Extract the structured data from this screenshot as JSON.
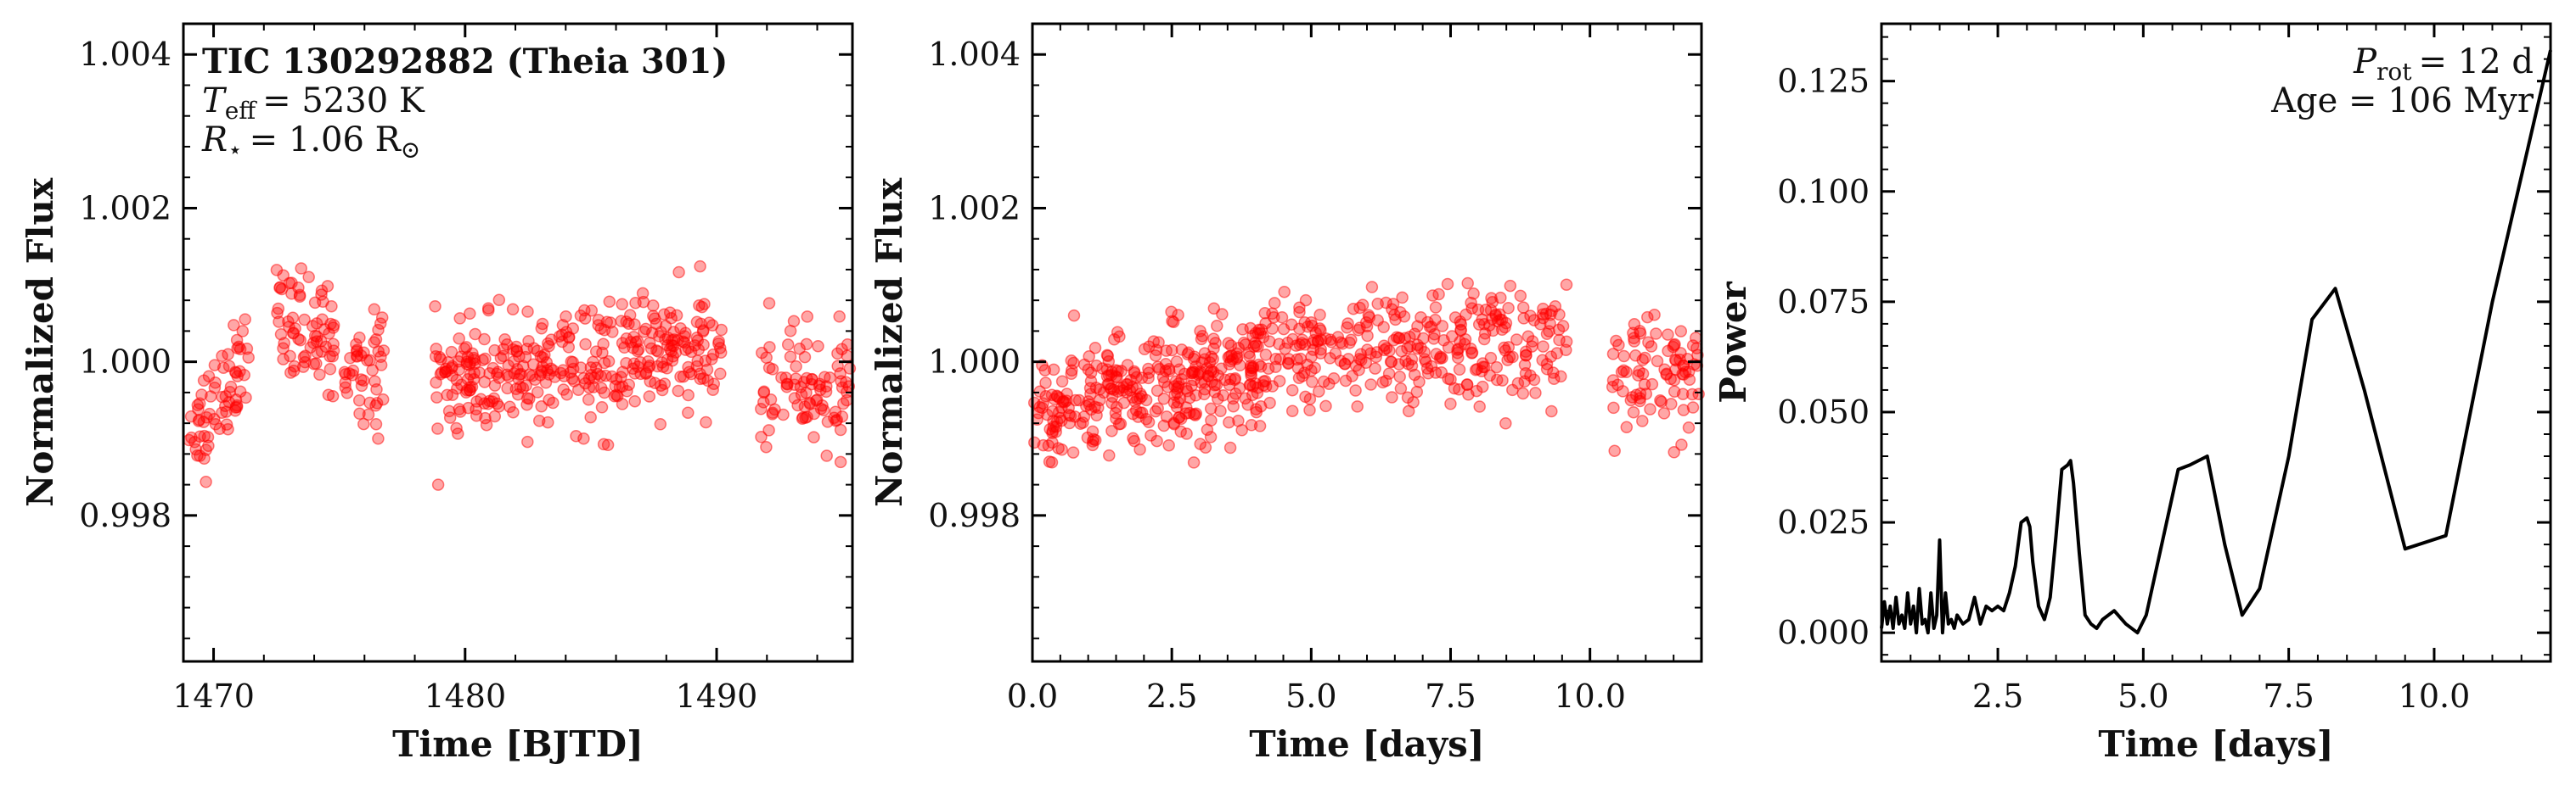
{
  "chart_data": [
    {
      "type": "scatter",
      "xlabel": "Time [BJTD]",
      "ylabel": "Normalized Flux",
      "xlim": [
        1468.8,
        1495.4
      ],
      "ylim": [
        0.9961,
        1.0044
      ],
      "xticks": [
        {
          "value": 1470,
          "label": "1470"
        },
        {
          "value": 1480,
          "label": "1480"
        },
        {
          "value": 1490,
          "label": "1490"
        }
      ],
      "yticks": [
        {
          "value": 0.998,
          "label": "0.998"
        },
        {
          "value": 1.0,
          "label": "1.000"
        },
        {
          "value": 1.002,
          "label": "1.002"
        },
        {
          "value": 1.004,
          "label": "1.004"
        }
      ],
      "annotations": {
        "star_name": "TIC 130292882 (Theia 301)",
        "teff": "= 5230 K",
        "radius": "= 1.06 R",
        "teff_symbol": "T",
        "teff_sub": "eff",
        "radius_symbol": "R",
        "radius_sub": "⋆",
        "sun_sub": "⊙"
      },
      "point_color": "#ff0000",
      "segments": [
        {
          "x_start": 1468.8,
          "x_end": 1471.4,
          "mean_start": 0.99875,
          "mean_end": 1.0002,
          "scatter": 0.00045,
          "count": 70
        },
        {
          "x_start": 1472.5,
          "x_end": 1474.8,
          "mean_start": 1.0004,
          "mean_end": 1.0004,
          "scatter": 0.0005,
          "count": 70
        },
        {
          "x_start": 1475.2,
          "x_end": 1476.8,
          "mean_start": 0.99995,
          "mean_end": 0.99985,
          "scatter": 0.0005,
          "count": 45
        },
        {
          "x_start": 1478.8,
          "x_end": 1490.2,
          "mean_start": 0.9997,
          "mean_end": 1.0002,
          "scatter": 0.0005,
          "count": 360
        },
        {
          "x_start": 1491.7,
          "x_end": 1495.4,
          "mean_start": 0.9996,
          "mean_end": 0.9997,
          "scatter": 0.0005,
          "count": 90
        }
      ]
    },
    {
      "type": "scatter",
      "xlabel": "Time [days]",
      "ylabel": "Normalized Flux",
      "xlim": [
        0.0,
        12.0
      ],
      "ylim": [
        0.9961,
        1.0044
      ],
      "xticks": [
        {
          "value": 0.0,
          "label": "0.0"
        },
        {
          "value": 2.5,
          "label": "2.5"
        },
        {
          "value": 5.0,
          "label": "5.0"
        },
        {
          "value": 7.5,
          "label": "7.5"
        },
        {
          "value": 10.0,
          "label": "10.0"
        }
      ],
      "yticks": [
        {
          "value": 0.998,
          "label": "0.998"
        },
        {
          "value": 1.0,
          "label": "1.000"
        },
        {
          "value": 1.002,
          "label": "1.002"
        },
        {
          "value": 1.004,
          "label": "1.004"
        }
      ],
      "point_color": "#ff0000",
      "segments": [
        {
          "x_start": 0.0,
          "x_end": 4.1,
          "mean_start": 0.9993,
          "mean_end": 0.99995,
          "scatter": 0.0005,
          "count": 330
        },
        {
          "x_start": 3.9,
          "x_end": 9.6,
          "mean_start": 1.0001,
          "mean_end": 1.0002,
          "scatter": 0.0005,
          "count": 330
        },
        {
          "x_start": 10.4,
          "x_end": 12.0,
          "mean_start": 0.9997,
          "mean_end": 0.99985,
          "scatter": 0.0005,
          "count": 90
        }
      ]
    },
    {
      "type": "line",
      "xlabel": "Time [days]",
      "ylabel": "Power",
      "xlim": [
        0.5,
        12.0
      ],
      "ylim": [
        -0.0065,
        0.138
      ],
      "xticks": [
        {
          "value": 2.5,
          "label": "2.5"
        },
        {
          "value": 5.0,
          "label": "5.0"
        },
        {
          "value": 7.5,
          "label": "7.5"
        },
        {
          "value": 10.0,
          "label": "10.0"
        }
      ],
      "yticks": [
        {
          "value": 0.0,
          "label": "0.000"
        },
        {
          "value": 0.025,
          "label": "0.025"
        },
        {
          "value": 0.05,
          "label": "0.050"
        },
        {
          "value": 0.075,
          "label": "0.075"
        },
        {
          "value": 0.1,
          "label": "0.100"
        },
        {
          "value": 0.125,
          "label": "0.125"
        }
      ],
      "annotations": {
        "prot_symbol": "P",
        "prot_sub": "rot",
        "prot_value": "= 12 d",
        "age": "Age = 106 Myr"
      },
      "line_color": "#000000",
      "series": [
        {
          "x": [
            0.5,
            0.55,
            0.6,
            0.65,
            0.7,
            0.75,
            0.8,
            0.85,
            0.9,
            0.95,
            1.0,
            1.05,
            1.1,
            1.15,
            1.2,
            1.25,
            1.3,
            1.35,
            1.4,
            1.45,
            1.5,
            1.55,
            1.6,
            1.65,
            1.7,
            1.75,
            1.8,
            1.9,
            2.0,
            2.1,
            2.2,
            2.3,
            2.4,
            2.5,
            2.6,
            2.7,
            2.8,
            2.9,
            3.0,
            3.05,
            3.1,
            3.2,
            3.3,
            3.4,
            3.5,
            3.6,
            3.7,
            3.75,
            3.8,
            3.9,
            4.0,
            4.1,
            4.2,
            4.3,
            4.5,
            4.7,
            4.9,
            5.05,
            5.2,
            5.4,
            5.6,
            5.8,
            6.1,
            6.4,
            6.7,
            7.0,
            7.5,
            7.9,
            8.3,
            8.8,
            9.5,
            10.2,
            11.0,
            12.0
          ],
          "y": [
            0.001,
            0.007,
            0.002,
            0.006,
            0.001,
            0.008,
            0.002,
            0.004,
            0.001,
            0.009,
            0.002,
            0.006,
            0.0,
            0.01,
            0.002,
            0.003,
            0.0,
            0.009,
            0.001,
            0.004,
            0.021,
            0.0,
            0.009,
            0.002,
            0.003,
            0.001,
            0.004,
            0.002,
            0.003,
            0.008,
            0.002,
            0.006,
            0.005,
            0.006,
            0.005,
            0.009,
            0.015,
            0.025,
            0.026,
            0.024,
            0.016,
            0.006,
            0.003,
            0.008,
            0.022,
            0.037,
            0.038,
            0.039,
            0.034,
            0.018,
            0.004,
            0.002,
            0.001,
            0.003,
            0.005,
            0.002,
            0.0,
            0.004,
            0.013,
            0.025,
            0.037,
            0.038,
            0.04,
            0.02,
            0.004,
            0.01,
            0.04,
            0.071,
            0.078,
            0.055,
            0.019,
            0.022,
            0.075,
            0.132
          ]
        }
      ]
    }
  ]
}
